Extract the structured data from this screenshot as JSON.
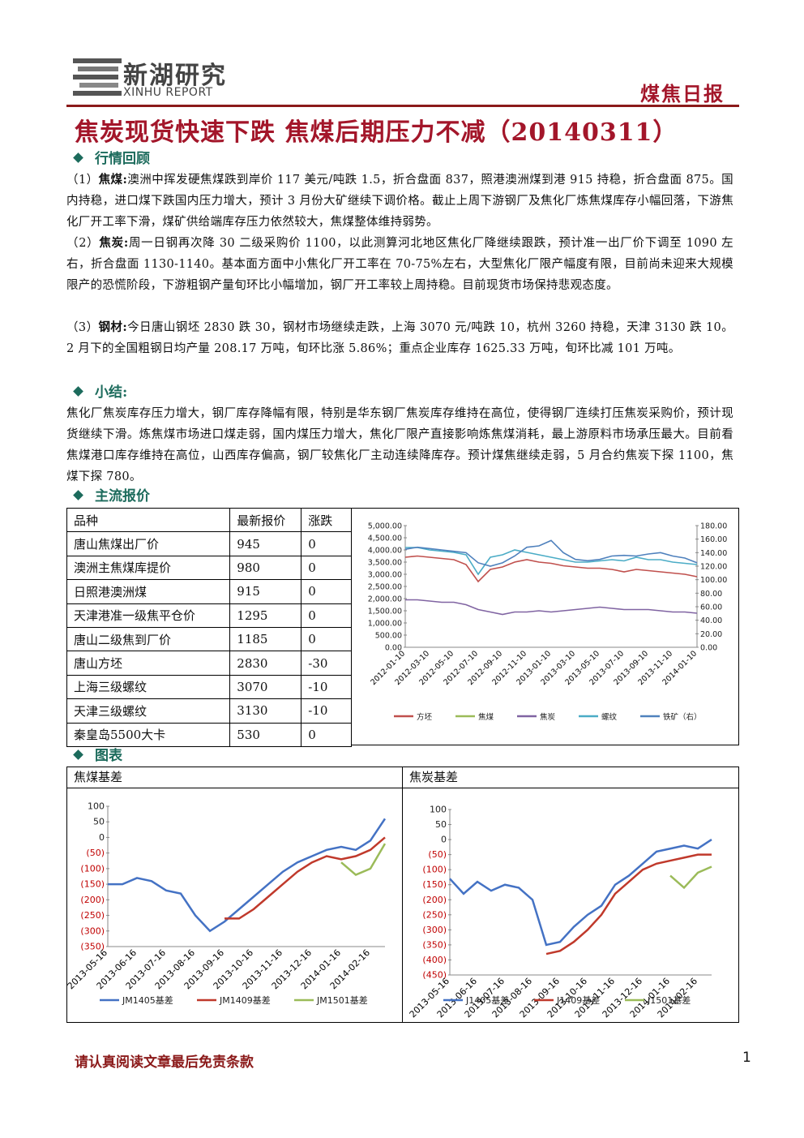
{
  "header": {
    "logo_cn": "新湖研究",
    "logo_en": "XINHU REPORT",
    "report_type": "煤焦日报"
  },
  "title": "焦炭现货快速下跌 焦煤后期压力不减（20140311）",
  "review": {
    "heading": "行情回顾",
    "paragraphs": [
      {
        "num": "（1）",
        "label": "焦煤:",
        "text": "澳洲中挥发硬焦煤跌到岸价 117 美元/吨跌 1.5，折合盘面 837，照港澳洲煤到港 915 持稳，折合盘面 875。国内持稳，进口煤下跌国内压力增大，预计 3 月份大矿继续下调价格。截止上周下游钢厂及焦化厂炼焦煤库存小幅回落，下游焦化厂开工率下滑，煤矿供给端库存压力依然较大，焦煤整体维持弱势。"
      },
      {
        "num": "（2）",
        "label": "焦炭:",
        "text": "周一日钢再次降 30 二级采购价 1100，以此测算河北地区焦化厂降继续跟跌，预计准一出厂价下调至 1090 左右，折合盘面 1130-1140。基本面方面中小焦化厂开工率在 70-75%左右，大型焦化厂限产幅度有限，目前尚未迎来大规模限产的恐慌阶段，下游粗钢产量旬环比小幅增加，钢厂开工率较上周持稳。目前现货市场保持悲观态度。"
      },
      {
        "num": "（3）",
        "label": "钢材:",
        "text": "今日唐山钢坯 2830 跌 30，钢材市场继续走跌，上海 3070 元/吨跌 10，杭州 3260 持稳，天津 3130 跌 10。2 月下的全国粗钢日均产量 208.17 万吨，旬环比涨 5.86%；重点企业库存 1625.33 万吨，旬环比减 101 万吨。"
      }
    ]
  },
  "summary": {
    "heading": "小结:",
    "text": "焦化厂焦炭库存压力增大，钢厂库存降幅有限，特别是华东钢厂焦炭库存维持在高位，使得钢厂连续打压焦炭采购价，预计现货继续下滑。炼焦煤市场进口煤走弱，国内煤压力增大，焦化厂限产直接影响炼焦煤消耗，最上游原料市场承压最大。目前看焦煤港口库存维持在高位，山西库存偏高，钢厂较焦化厂主动连续降库存。预计煤焦继续走弱，5 月合约焦炭下探 1100，焦煤下探 780。"
  },
  "quotes": {
    "heading": "主流报价",
    "table": {
      "header": [
        "品种",
        "最新报价",
        "涨跌"
      ],
      "rows": [
        [
          "唐山焦煤出厂价",
          945,
          0
        ],
        [
          "澳洲主焦煤库提价",
          980,
          0
        ],
        [
          "日照港澳洲煤",
          915,
          0
        ],
        [
          "天津港准一级焦平仓价",
          1295,
          0
        ],
        [
          "唐山二级焦到厂价",
          1185,
          0
        ],
        [
          "唐山方坯",
          2830,
          -30
        ],
        [
          "上海三级螺纹",
          3070,
          -10
        ],
        [
          "天津三级螺纹",
          3130,
          -10
        ],
        [
          "秦皇岛5500大卡",
          530,
          0
        ]
      ]
    }
  },
  "charts_heading": "图表",
  "footer": {
    "disclaimer": "请认真阅读文章最后免责条款",
    "page": 1
  },
  "chart_data": [
    {
      "type": "line",
      "x": [
        "2012-01-10",
        null,
        "2012-03-10",
        null,
        "2012-05-10",
        null,
        "2012-07-10",
        null,
        "2012-09-10",
        null,
        "2012-11-10",
        null,
        "2013-01-10",
        null,
        "2013-03-10",
        null,
        "2013-05-10",
        null,
        "2013-07-10",
        null,
        "2013-09-10",
        null,
        "2013-11-10",
        null,
        "2014-01-10"
      ],
      "ylim": [
        0,
        5000
      ],
      "yticks": [
        {
          "value": 0,
          "label": "0.00"
        },
        {
          "value": 500,
          "label": "500.00"
        },
        {
          "value": 1000,
          "label": "1,000.00"
        },
        {
          "value": 1500,
          "label": "1,500.00"
        },
        {
          "value": 2000,
          "label": "2,000.00"
        },
        {
          "value": 2500,
          "label": "2,500.00"
        },
        {
          "value": 3000,
          "label": "3,000.00"
        },
        {
          "value": 3500,
          "label": "3,500.00"
        },
        {
          "value": 4000,
          "label": "4,000.00"
        },
        {
          "value": 4500,
          "label": "4,500.00"
        },
        {
          "value": 5000,
          "label": "5,000.00"
        }
      ],
      "y2lim": [
        0,
        180
      ],
      "y2ticks": [
        {
          "value": 0,
          "label": "0.00"
        },
        {
          "value": 20,
          "label": "20.00"
        },
        {
          "value": 40,
          "label": "40.00"
        },
        {
          "value": 60,
          "label": "60.00"
        },
        {
          "value": 80,
          "label": "80.00"
        },
        {
          "value": 100,
          "label": "100.00"
        },
        {
          "value": 120,
          "label": "120.00"
        },
        {
          "value": 140,
          "label": "140.00"
        },
        {
          "value": 160,
          "label": "160.00"
        },
        {
          "value": 180,
          "label": "180.00"
        }
      ],
      "series": [
        {
          "name": "方坯",
          "color": "#c0504d",
          "values": [
            3700,
            3750,
            3700,
            3650,
            3600,
            3400,
            2700,
            3200,
            3300,
            3500,
            3600,
            3500,
            3450,
            3350,
            3300,
            3250,
            3250,
            3200,
            3100,
            3200,
            3150,
            3100,
            3050,
            3000,
            2900
          ]
        },
        {
          "name": "焦煤",
          "color": "#9bbb59",
          "values": [
            null,
            null,
            null,
            null,
            null,
            null,
            null,
            null,
            null,
            null,
            null,
            null,
            null,
            null,
            null,
            null,
            null,
            null,
            null,
            null,
            null,
            null,
            null,
            null,
            null
          ]
        },
        {
          "name": "焦炭",
          "color": "#8064a2",
          "values": [
            1950,
            1950,
            1900,
            1850,
            1850,
            1750,
            1550,
            1450,
            1350,
            1450,
            1450,
            1500,
            1450,
            1500,
            1550,
            1600,
            1650,
            1600,
            1550,
            1550,
            1550,
            1500,
            1450,
            1450,
            1400
          ]
        },
        {
          "name": "螺纹",
          "color": "#4bacc6",
          "values": [
            4100,
            4100,
            4000,
            3950,
            3900,
            3800,
            3000,
            3700,
            3800,
            4000,
            3900,
            3800,
            3700,
            3600,
            3500,
            3500,
            3550,
            3600,
            3550,
            3700,
            3600,
            3600,
            3500,
            3450,
            3400
          ]
        },
        {
          "name": "铁矿（右）",
          "color": "#4f81bd",
          "axis": "y2",
          "values": [
            145,
            148,
            146,
            144,
            142,
            140,
            125,
            120,
            125,
            135,
            148,
            150,
            158,
            140,
            130,
            128,
            130,
            135,
            136,
            135,
            138,
            140,
            135,
            132,
            125
          ]
        }
      ]
    },
    {
      "type": "line",
      "title": "焦煤基差",
      "negative_color": "#c00000",
      "x": [
        "2013-05-16",
        null,
        "2013-06-16",
        null,
        "2013-07-16",
        null,
        "2013-08-16",
        null,
        "2013-09-16",
        null,
        "2013-10-16",
        null,
        "2013-11-16",
        null,
        "2013-12-16",
        null,
        "2014-01-16",
        null,
        "2014-02-16",
        null
      ],
      "ylim": [
        -350,
        100
      ],
      "yticks": [
        100,
        50,
        0,
        {
          "value": -50,
          "label": "(50)"
        },
        {
          "value": -100,
          "label": "(100)"
        },
        {
          "value": -150,
          "label": "(150)"
        },
        {
          "value": -200,
          "label": "(200)"
        },
        {
          "value": -250,
          "label": "(250)"
        },
        {
          "value": -300,
          "label": "(300)"
        },
        {
          "value": -350,
          "label": "(350)"
        }
      ],
      "series": [
        {
          "name": "JM1405基差",
          "color": "#4472c4",
          "values": [
            -150,
            -150,
            -130,
            -140,
            -170,
            -180,
            -250,
            -300,
            -270,
            -230,
            -190,
            -150,
            -110,
            -80,
            -60,
            -40,
            -30,
            -40,
            -10,
            60
          ]
        },
        {
          "name": "JM1409基差",
          "color": "#c0392b",
          "values": [
            null,
            null,
            null,
            null,
            null,
            null,
            null,
            null,
            -260,
            -260,
            -230,
            -190,
            -150,
            -110,
            -80,
            -60,
            -70,
            -60,
            -40,
            0
          ]
        },
        {
          "name": "JM1501基差",
          "color": "#9bbb59",
          "values": [
            null,
            null,
            null,
            null,
            null,
            null,
            null,
            null,
            null,
            null,
            null,
            null,
            null,
            null,
            null,
            null,
            -80,
            -120,
            -100,
            -20
          ]
        }
      ]
    },
    {
      "type": "line",
      "title": "焦炭基差",
      "negative_color": "#c00000",
      "x": [
        "2013-05-16",
        null,
        "2013-06-16",
        null,
        "2013-07-16",
        null,
        "2013-08-16",
        null,
        "2013-09-16",
        null,
        "2013-10-16",
        null,
        "2013-11-16",
        null,
        "2013-12-16",
        null,
        "2014-01-16",
        null,
        "2014-02-16",
        null
      ],
      "ylim": [
        -450,
        100
      ],
      "yticks": [
        100,
        50,
        0,
        {
          "value": -50,
          "label": "(50)"
        },
        {
          "value": -100,
          "label": "(100)"
        },
        {
          "value": -150,
          "label": "(150)"
        },
        {
          "value": -200,
          "label": "(200)"
        },
        {
          "value": -250,
          "label": "(250)"
        },
        {
          "value": -300,
          "label": "(300)"
        },
        {
          "value": -350,
          "label": "(350)"
        },
        {
          "value": -400,
          "label": "(400)"
        },
        {
          "value": -450,
          "label": "(450)"
        }
      ],
      "series": [
        {
          "name": "J1405基差",
          "color": "#4472c4",
          "values": [
            -130,
            -180,
            -140,
            -170,
            -150,
            -160,
            -200,
            -350,
            -340,
            -290,
            -250,
            -220,
            -150,
            -120,
            -80,
            -40,
            -30,
            -20,
            -30,
            0
          ]
        },
        {
          "name": "J1409基差",
          "color": "#c0392b",
          "values": [
            null,
            null,
            null,
            null,
            null,
            null,
            null,
            -380,
            -370,
            -340,
            -300,
            -250,
            -180,
            -140,
            -100,
            -80,
            -70,
            -60,
            -50,
            -50
          ]
        },
        {
          "name": "J1501基差",
          "color": "#9bbb59",
          "values": [
            null,
            null,
            null,
            null,
            null,
            null,
            null,
            null,
            null,
            null,
            null,
            null,
            null,
            null,
            null,
            null,
            -120,
            -160,
            -110,
            -90
          ]
        }
      ]
    }
  ]
}
